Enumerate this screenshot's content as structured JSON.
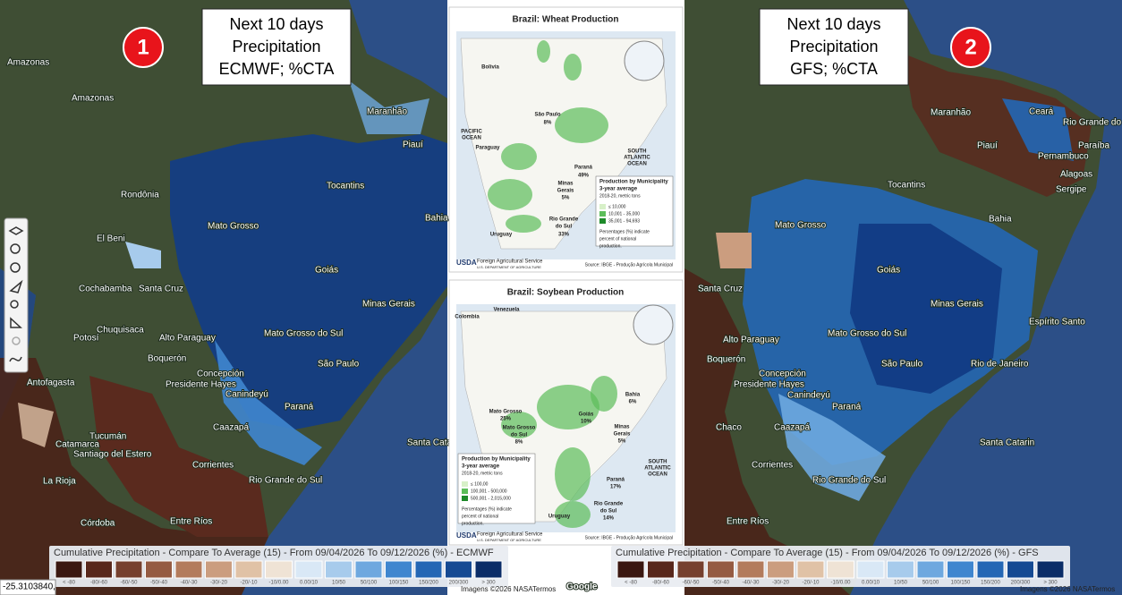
{
  "panels": [
    {
      "badge": "1",
      "note": [
        "Next 10 days",
        "Precipitation",
        "ECMWF; %CTA"
      ],
      "places": [
        "Amazonas",
        "Amazonas",
        "Maranhão",
        "Piauí",
        "Tocantins",
        "Rondônia",
        "Mato Grosso",
        "Bahia",
        "El Beni",
        "Goiás",
        "Cochabamba",
        "Santa Cruz",
        "Minas Gerais",
        "Chuquisaca",
        "Potosí",
        "Alto Paraguay",
        "Mato Grosso do Sul",
        "Boquerón",
        "São Paulo",
        "Concepción",
        "Presidente Hayes",
        "Canindeyú",
        "Antofagasta",
        "Paraná",
        "Tucumán",
        "Catamarca",
        "Santiago del Estero",
        "Caazapá",
        "Santa Catarin",
        "Corrientes",
        "Rio Grande do Sul",
        "La Rioja",
        "Entre Ríos",
        "Córdoba"
      ],
      "legend": {
        "title": "Cumulative Precipitation - Compare To Average (15) - From 09/04/2026 To 09/12/2026 (%) - ECMWF"
      },
      "attribution": "Imagens ©2026 NASA",
      "terms": "Termos"
    },
    {
      "badge": "2",
      "note": [
        "Next 10 days",
        "Precipitation",
        "GFS; %CTA"
      ],
      "places": [
        "Maranhão",
        "Ceará",
        "Rio Grande do Norte",
        "Piauí",
        "Paraíba",
        "Pernambuco",
        "Alagoas",
        "Sergipe",
        "Tocantins",
        "Bahia",
        "Mato Grosso",
        "Goiás",
        "Santa Cruz",
        "Minas Gerais",
        "Espírito Santo",
        "Alto Paraguay",
        "Mato Grosso do Sul",
        "Boquerón",
        "São Paulo",
        "Rio de Janeiro",
        "Concepción",
        "Presidente Hayes",
        "Canindeyú",
        "Paraná",
        "Chaco",
        "Caazapá",
        "Santa Catarin",
        "Corrientes",
        "Rio Grande do Sul",
        "Entre Ríos"
      ],
      "legend": {
        "title": "Cumulative Precipitation - Compare To Average (15) - From 09/04/2026 To 09/12/2026 (%) - GFS"
      },
      "attribution": "Imagens ©2026 NASA",
      "terms": "Termos"
    }
  ],
  "legend_labels": [
    "< -80",
    "-80/-60",
    "-60/-50",
    "-50/-40",
    "-40/-30",
    "-30/-20",
    "-20/-10",
    "-10/0.00",
    "0.00/10",
    "10/50",
    "50/100",
    "100/150",
    "150/200",
    "200/300",
    "> 300"
  ],
  "legend_colors": [
    "#3a1710",
    "#58271b",
    "#76402e",
    "#955b42",
    "#b37b5c",
    "#cb9d7f",
    "#e0c2a6",
    "#efe3d5",
    "#d9e8f6",
    "#a7cbec",
    "#6ea8df",
    "#3f86cf",
    "#2467b5",
    "#154a93",
    "#0b2d68"
  ],
  "coordinate": "-25.3103840,",
  "google": "Google",
  "maps": [
    {
      "title": "Brazil: Wheat Production",
      "labels": [
        "São Paulo",
        "8%",
        "Paraná",
        "49%",
        "Minas",
        "Gerais",
        "5%",
        "Rio Grande",
        "do Sul",
        "33%",
        "PACIFIC",
        "OCEAN",
        "SOUTH",
        "ATLANTIC",
        "OCEAN",
        "Paraguay",
        "Uruguay",
        "Bolivia"
      ],
      "legend": [
        "Production by Municipality",
        "3-year average",
        "2018-20, metric tons",
        "≤ 10,000",
        "10,001 - 35,000",
        "35,001 - 94,693",
        "Percentages (%) indicate",
        "percent of national",
        "production."
      ],
      "agency": "Foreign Agricultural Service",
      "dept": "U.S. DEPARTMENT OF AGRICULTURE",
      "usda": "USDA",
      "source": "Source: IBGE - Produção Agrícola Municipal"
    },
    {
      "title": "Brazil: Soybean Production",
      "labels": [
        "Mato Grosso",
        "25%",
        "Goiás",
        "10%",
        "Bahia",
        "6%",
        "Minas",
        "Gerais",
        "5%",
        "Mato Grosso",
        "do Sul",
        "8%",
        "Paraná",
        "17%",
        "Rio Grande",
        "do Sul",
        "14%",
        "SOUTH",
        "ATLANTIC",
        "OCEAN",
        "Colombia",
        "Venezuela",
        "Uruguay"
      ],
      "legend": [
        "Production by Municipality",
        "3-year average",
        "2018-20, metric tons",
        "≤ 100,00",
        "100,001 - 500,000",
        "500,001 - 2,015,000",
        "Percentages (%) indicate",
        "percent of national",
        "production."
      ],
      "agency": "Foreign Agricultural Service",
      "dept": "U.S. DEPARTMENT OF AGRICULTURE",
      "usda": "USDA",
      "source": "Source: IBGE - Produção Agrícola Municipal"
    }
  ]
}
